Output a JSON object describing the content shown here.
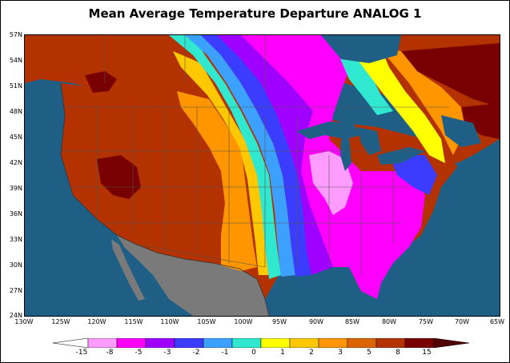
{
  "title": "Mean Average Temperature Departure ANALOG 1",
  "y_axis_labels": [
    "57N",
    "54N",
    "51N",
    "48N",
    "45N",
    "42N",
    "39N",
    "36N",
    "33N",
    "30N",
    "27N",
    "24N"
  ],
  "x_axis_labels": [
    "130W",
    "125W",
    "120W",
    "115W",
    "110W",
    "105W",
    "100W",
    "95W",
    "90W",
    "85W",
    "80W",
    "75W",
    "70W",
    "65W"
  ],
  "legend": {
    "labels": [
      "-15",
      "-8",
      "-5",
      "-3",
      "-2",
      "-1",
      "0",
      "1",
      "2",
      "3",
      "5",
      "8",
      "15"
    ],
    "colors": [
      "#ffffff",
      "#ff9cff",
      "#ff00ff",
      "#a000ff",
      "#3c3cff",
      "#3ca0ff",
      "#30e8d0",
      "#ffff00",
      "#ffc800",
      "#ff9600",
      "#dc6400",
      "#b43200",
      "#780000",
      "#500000"
    ]
  },
  "colors": {
    "ocean": "#1f5f86",
    "mexico_land": "#7a7a7a",
    "borders": "#555555"
  }
}
